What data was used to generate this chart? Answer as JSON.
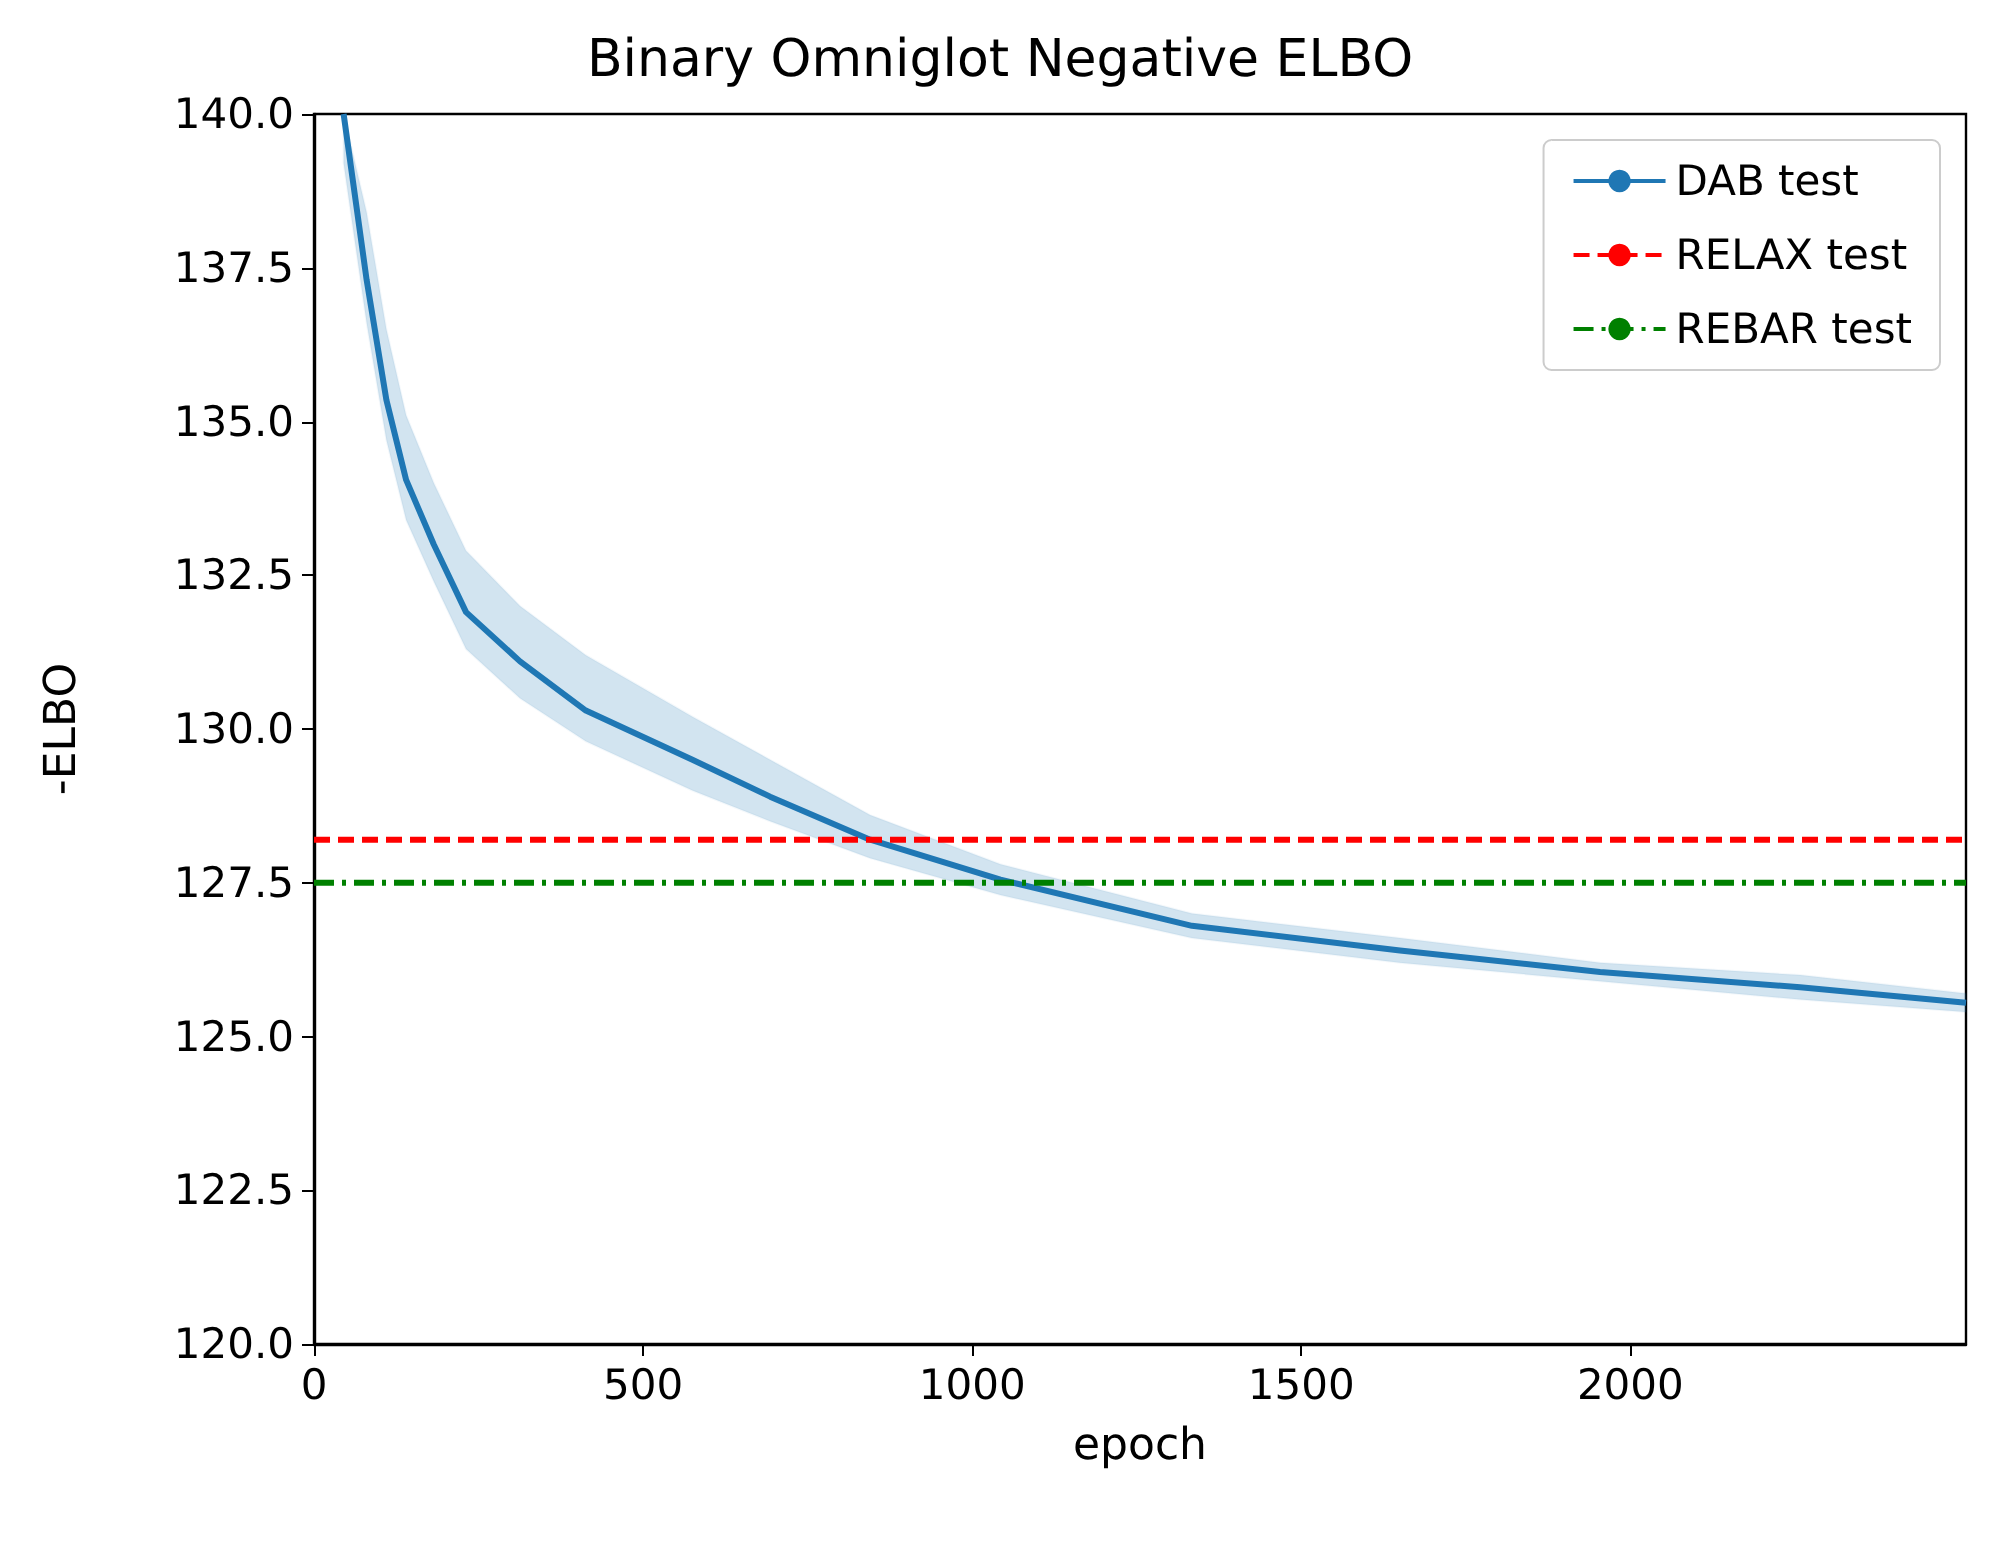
{
  "chart_data": {
    "type": "line",
    "title": "Binary Omniglot Negative ELBO",
    "xlabel": "epoch",
    "ylabel": "-ELBO",
    "xlim": [
      0,
      2510
    ],
    "xticks": [
      0,
      500,
      1000,
      1500,
      2000
    ],
    "ylim": [
      120,
      140
    ],
    "yticks": [
      {
        "value": 120,
        "label": "120.0"
      },
      {
        "value": 122.5,
        "label": "122.5"
      },
      {
        "value": 125,
        "label": "125.0"
      },
      {
        "value": 127.5,
        "label": "127.5"
      },
      {
        "value": 130,
        "label": "130.0"
      },
      {
        "value": 132.5,
        "label": "132.5"
      },
      {
        "value": 135,
        "label": "135.0"
      },
      {
        "value": 137.5,
        "label": "137.5"
      },
      {
        "value": 140,
        "label": "140.0"
      }
    ],
    "grid": false,
    "legend": "top right",
    "marker": "none",
    "series": [
      {
        "name": "DAB test",
        "color": "#1f77b4",
        "line_style": "solid",
        "x": [
          45,
          80,
          110,
          140,
          182,
          231,
          313,
          413,
          575,
          693,
          845,
          1043,
          1334,
          1650,
          1954,
          2258,
          2510
        ],
        "values": [
          140.0,
          137.3,
          135.35,
          134.05,
          133.0,
          131.9,
          131.1,
          130.3,
          129.5,
          128.9,
          128.2,
          127.55,
          126.8,
          126.4,
          126.05,
          125.8,
          125.55
        ],
        "lower": [
          139.2,
          136.6,
          134.7,
          133.4,
          132.4,
          131.3,
          130.5,
          129.8,
          129.0,
          128.5,
          127.9,
          127.3,
          126.6,
          126.2,
          125.9,
          125.6,
          125.4
        ],
        "upper": [
          140.0,
          138.4,
          136.5,
          135.1,
          134.0,
          132.9,
          132.0,
          131.2,
          130.2,
          129.5,
          128.6,
          127.8,
          127.0,
          126.6,
          126.2,
          126.0,
          125.7
        ]
      },
      {
        "name": "RELAX test",
        "color": "#ff0000",
        "line_style": "dashed",
        "x": [
          0,
          2510
        ],
        "values": [
          128.2,
          128.2
        ]
      },
      {
        "name": "REBAR test",
        "color": "#008000",
        "line_style": "dashdot",
        "x": [
          0,
          2510
        ],
        "values": [
          127.5,
          127.5
        ]
      }
    ]
  }
}
